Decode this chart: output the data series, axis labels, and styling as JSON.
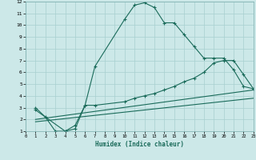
{
  "title": "",
  "xlabel": "Humidex (Indice chaleur)",
  "xlim": [
    0,
    23
  ],
  "ylim": [
    1,
    12
  ],
  "xticks": [
    0,
    1,
    2,
    3,
    4,
    5,
    6,
    7,
    8,
    9,
    10,
    11,
    12,
    13,
    14,
    15,
    16,
    17,
    18,
    19,
    20,
    21,
    22,
    23
  ],
  "yticks": [
    1,
    2,
    3,
    4,
    5,
    6,
    7,
    8,
    9,
    10,
    11,
    12
  ],
  "background_color": "#cce8e8",
  "grid_color": "#a8cfcf",
  "line_color": "#1a6b5a",
  "line1_x": [
    1,
    2,
    3,
    4,
    5,
    6,
    7,
    10,
    11,
    12,
    13,
    14,
    15,
    16,
    17,
    18,
    19,
    20,
    21,
    22,
    23
  ],
  "line1_y": [
    3.0,
    2.2,
    1.0,
    1.0,
    1.5,
    3.2,
    6.5,
    10.5,
    11.7,
    11.9,
    11.5,
    10.2,
    10.2,
    9.2,
    8.2,
    7.2,
    7.2,
    7.2,
    6.2,
    4.8,
    4.6
  ],
  "line2_x": [
    1,
    4,
    5,
    6,
    7,
    10,
    11,
    12,
    13,
    14,
    15,
    16,
    17,
    18,
    19,
    20,
    21,
    22,
    23
  ],
  "line2_y": [
    2.8,
    1.0,
    1.2,
    3.2,
    3.2,
    3.5,
    3.8,
    4.0,
    4.2,
    4.5,
    4.8,
    5.2,
    5.5,
    6.0,
    6.8,
    7.0,
    7.0,
    5.8,
    4.6
  ],
  "line3_x": [
    1,
    23
  ],
  "line3_y": [
    2.0,
    4.5
  ],
  "line4_x": [
    1,
    23
  ],
  "line4_y": [
    1.8,
    3.8
  ]
}
